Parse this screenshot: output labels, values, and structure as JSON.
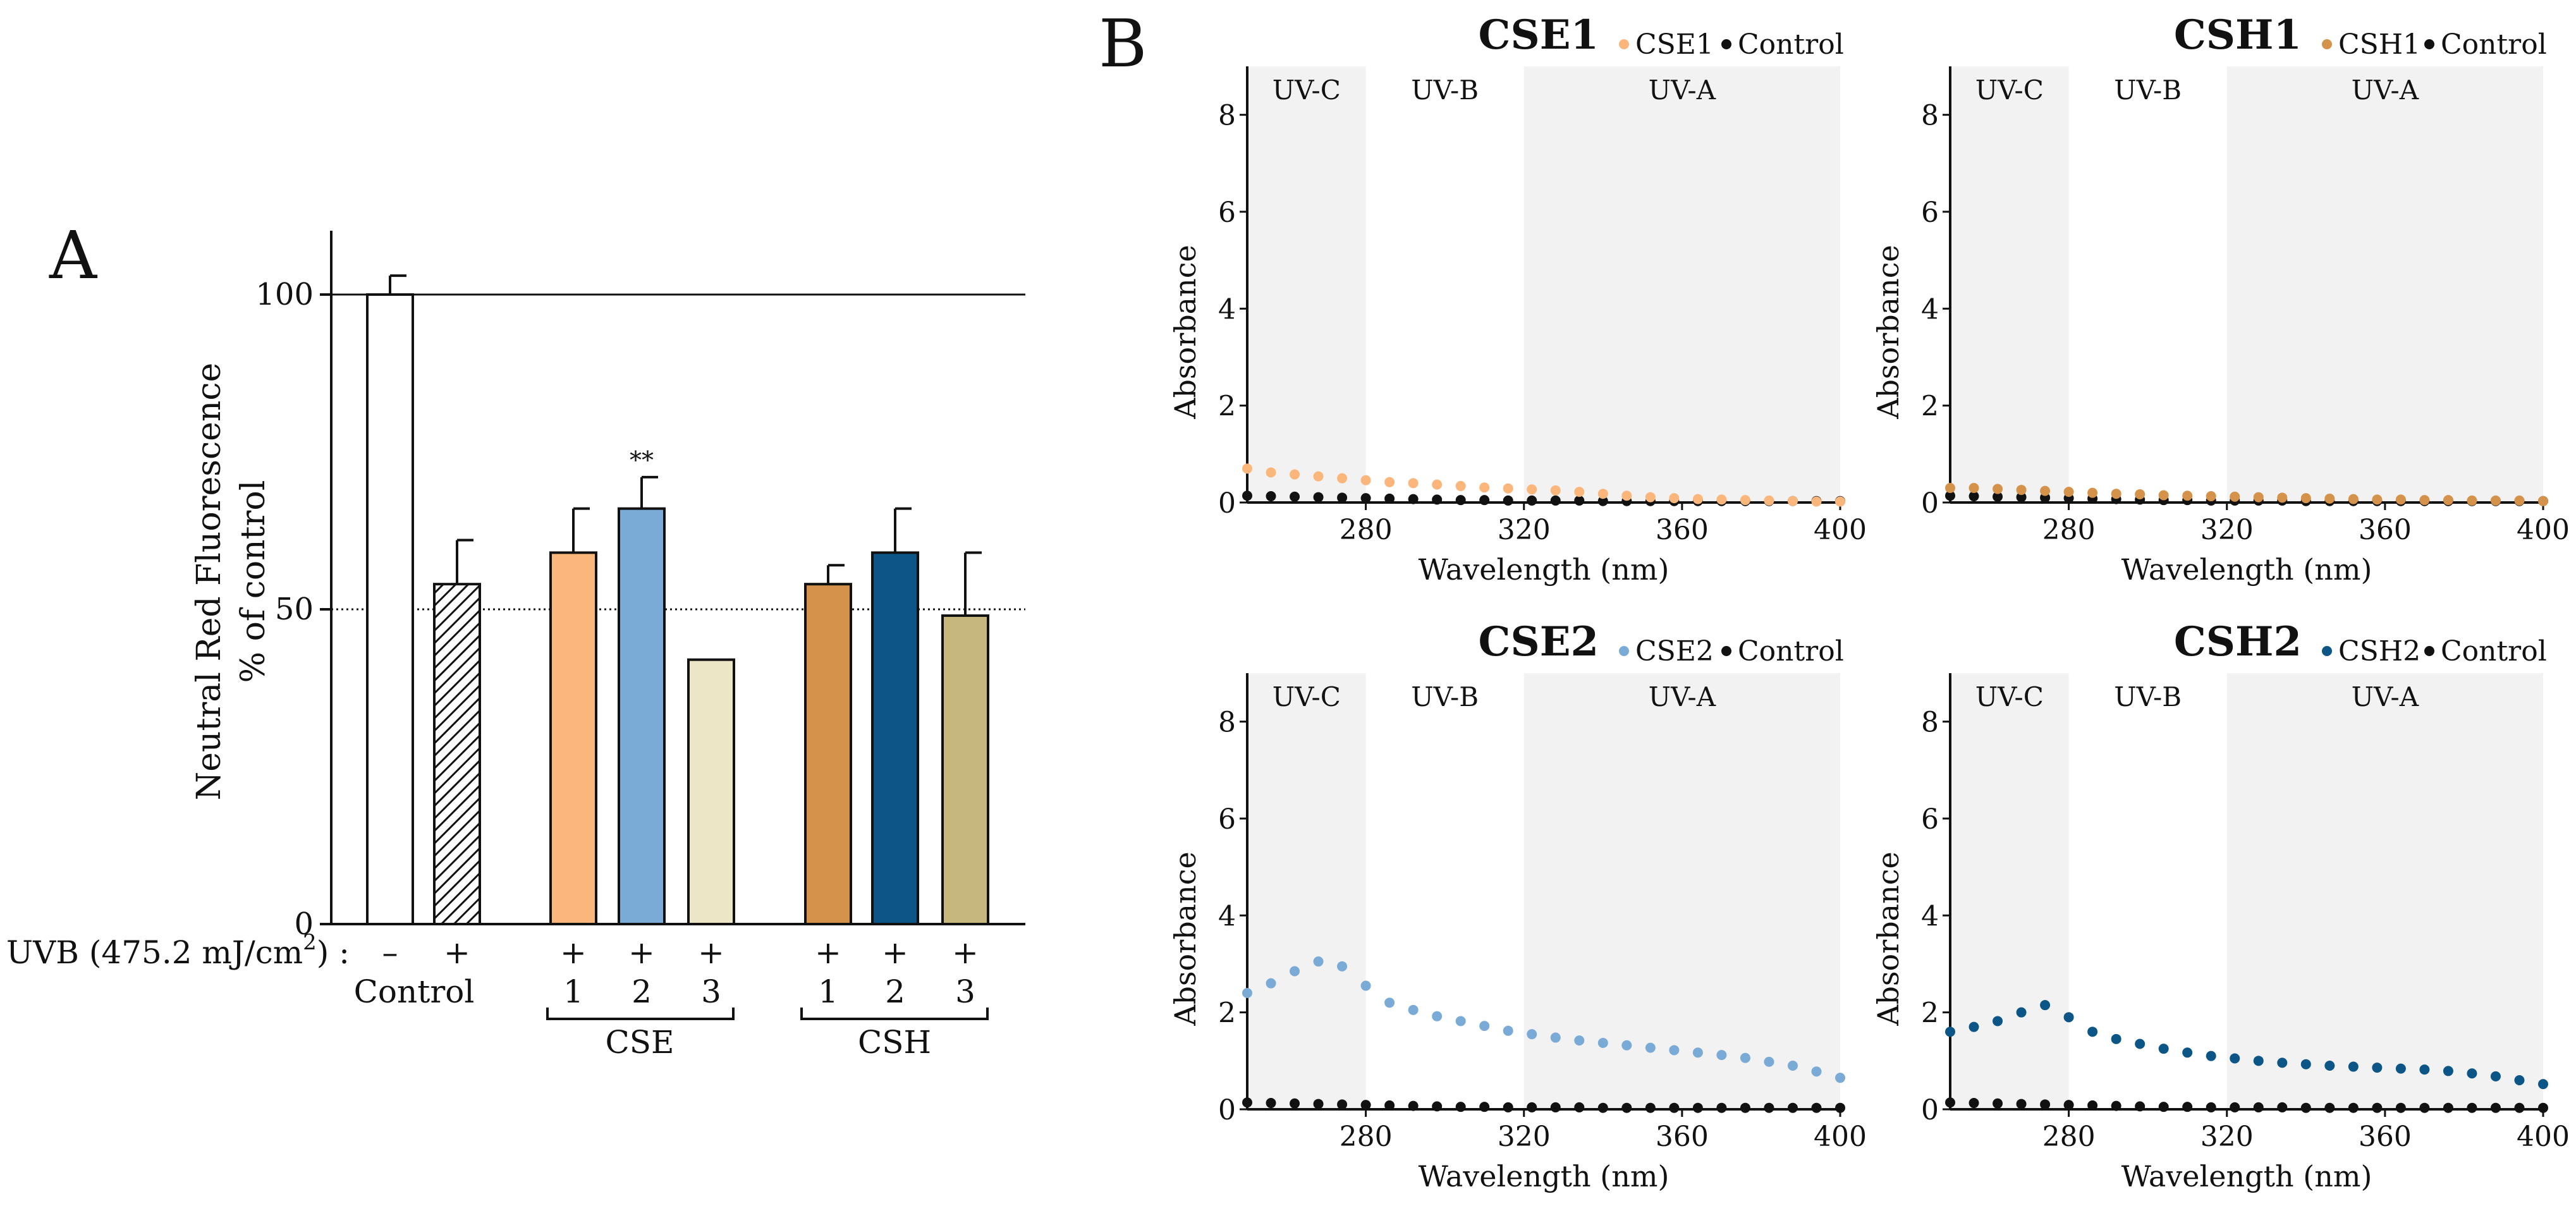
{
  "panel_a": {
    "label": "A",
    "ylabel_line1": "Neutral Red Fluorescence",
    "ylabel_line2": "% of control",
    "uvb_label_prefix": "UVB (475.2 mJ/cm",
    "uvb_label_sup": "2",
    "uvb_label_suffix": ") :",
    "control_label": "Control",
    "group_cse": "CSE",
    "group_csh": "CSH",
    "significance": "**",
    "yticks": [
      "0",
      "50",
      "100"
    ]
  },
  "panel_b": {
    "label": "B",
    "xlabel": "Wavelength (nm)",
    "ylabel": "Absorbance",
    "region_labels": [
      "UV-C",
      "UV-B",
      "UV-A"
    ],
    "xticks": [
      "280",
      "320",
      "360",
      "400"
    ],
    "yticks": [
      "0",
      "2",
      "4",
      "6",
      "8"
    ],
    "legend_control": "Control"
  },
  "colors": {
    "cse1": "#fbb77b",
    "cse2": "#7aaad6",
    "cse3": "#ece5c6",
    "csh1": "#d4924a",
    "csh2": "#0b5687",
    "csh3": "#c6b77c",
    "control_series": "#111111",
    "shade": "#f2f2f2"
  },
  "chart_data": [
    {
      "type": "bar",
      "title": "",
      "ylabel": "Neutral Red Fluorescence % of control",
      "ylim": [
        0,
        110
      ],
      "reference_lines": [
        100,
        50
      ],
      "categories": [
        "Control -",
        "Control +",
        "CSE 1",
        "CSE 2",
        "CSE 3",
        "CSH 1",
        "CSH 2",
        "CSH 3"
      ],
      "uvb": [
        "–",
        "+",
        "+",
        "+",
        "+",
        "+",
        "+",
        "+"
      ],
      "index_labels": [
        "",
        "",
        "1",
        "2",
        "3",
        "1",
        "2",
        "3"
      ],
      "values": [
        100,
        54,
        59,
        66,
        42,
        54,
        59,
        49
      ],
      "errors": [
        3,
        7,
        7,
        5,
        0,
        3,
        7,
        10
      ],
      "fills": [
        "#ffffff",
        "hatch",
        "#fbb77b",
        "#7aaad6",
        "#ece5c6",
        "#d4924a",
        "#0b5687",
        "#c6b77c"
      ],
      "significance": [
        "",
        "",
        "",
        "**",
        "",
        "",
        "",
        ""
      ]
    },
    {
      "type": "scatter",
      "title": "CSE1",
      "xlabel": "Wavelength (nm)",
      "ylabel": "Absorbance",
      "xlim": [
        250,
        400
      ],
      "ylim": [
        0,
        9
      ],
      "x": [
        250,
        256,
        262,
        268,
        274,
        280,
        286,
        292,
        298,
        304,
        310,
        316,
        322,
        328,
        334,
        340,
        346,
        352,
        358,
        364,
        370,
        376,
        382,
        388,
        394,
        400
      ],
      "series": [
        {
          "name": "CSE1",
          "color": "#fbb77b",
          "values": [
            0.7,
            0.62,
            0.58,
            0.54,
            0.5,
            0.46,
            0.42,
            0.4,
            0.37,
            0.34,
            0.31,
            0.29,
            0.27,
            0.25,
            0.22,
            0.18,
            0.14,
            0.11,
            0.09,
            0.07,
            0.06,
            0.05,
            0.04,
            0.03,
            0.02,
            0.02
          ]
        },
        {
          "name": "Control",
          "color": "#111111",
          "values": [
            0.14,
            0.13,
            0.12,
            0.11,
            0.1,
            0.09,
            0.08,
            0.07,
            0.06,
            0.05,
            0.05,
            0.04,
            0.04,
            0.04,
            0.04,
            0.03,
            0.03,
            0.03,
            0.03,
            0.03,
            0.03,
            0.03,
            0.03,
            0.03,
            0.03,
            0.03
          ]
        }
      ],
      "regions": [
        {
          "label": "UV-C",
          "range": [
            250,
            280
          ]
        },
        {
          "label": "UV-B",
          "range": [
            280,
            320
          ]
        },
        {
          "label": "UV-A",
          "range": [
            320,
            400
          ]
        }
      ]
    },
    {
      "type": "scatter",
      "title": "CSH1",
      "xlabel": "Wavelength (nm)",
      "ylabel": "Absorbance",
      "xlim": [
        250,
        400
      ],
      "ylim": [
        0,
        9
      ],
      "x": [
        250,
        256,
        262,
        268,
        274,
        280,
        286,
        292,
        298,
        304,
        310,
        316,
        322,
        328,
        334,
        340,
        346,
        352,
        358,
        364,
        370,
        376,
        382,
        388,
        394,
        400
      ],
      "series": [
        {
          "name": "CSH1",
          "color": "#d4924a",
          "values": [
            0.3,
            0.3,
            0.28,
            0.26,
            0.24,
            0.22,
            0.2,
            0.18,
            0.17,
            0.15,
            0.14,
            0.13,
            0.12,
            0.11,
            0.1,
            0.09,
            0.08,
            0.07,
            0.06,
            0.06,
            0.05,
            0.05,
            0.04,
            0.04,
            0.04,
            0.03
          ]
        },
        {
          "name": "Control",
          "color": "#111111",
          "values": [
            0.14,
            0.13,
            0.12,
            0.11,
            0.1,
            0.09,
            0.08,
            0.07,
            0.06,
            0.05,
            0.05,
            0.04,
            0.04,
            0.04,
            0.04,
            0.03,
            0.03,
            0.03,
            0.03,
            0.03,
            0.03,
            0.03,
            0.03,
            0.03,
            0.03,
            0.03
          ]
        }
      ],
      "regions": [
        {
          "label": "UV-C",
          "range": [
            250,
            280
          ]
        },
        {
          "label": "UV-B",
          "range": [
            280,
            320
          ]
        },
        {
          "label": "UV-A",
          "range": [
            320,
            400
          ]
        }
      ]
    },
    {
      "type": "scatter",
      "title": "CSE2",
      "xlabel": "Wavelength (nm)",
      "ylabel": "Absorbance",
      "xlim": [
        250,
        400
      ],
      "ylim": [
        0,
        9
      ],
      "x": [
        250,
        256,
        262,
        268,
        274,
        280,
        286,
        292,
        298,
        304,
        310,
        316,
        322,
        328,
        334,
        340,
        346,
        352,
        358,
        364,
        370,
        376,
        382,
        388,
        394,
        400
      ],
      "series": [
        {
          "name": "CSE2",
          "color": "#7aaad6",
          "values": [
            2.4,
            2.6,
            2.85,
            3.05,
            2.95,
            2.55,
            2.2,
            2.05,
            1.92,
            1.82,
            1.72,
            1.62,
            1.55,
            1.48,
            1.42,
            1.37,
            1.32,
            1.27,
            1.22,
            1.17,
            1.12,
            1.06,
            0.98,
            0.9,
            0.78,
            0.65
          ]
        },
        {
          "name": "Control",
          "color": "#111111",
          "values": [
            0.14,
            0.13,
            0.12,
            0.11,
            0.1,
            0.09,
            0.08,
            0.07,
            0.06,
            0.05,
            0.05,
            0.04,
            0.04,
            0.04,
            0.04,
            0.03,
            0.03,
            0.03,
            0.03,
            0.03,
            0.03,
            0.03,
            0.03,
            0.03,
            0.03,
            0.03
          ]
        }
      ],
      "regions": [
        {
          "label": "UV-C",
          "range": [
            250,
            280
          ]
        },
        {
          "label": "UV-B",
          "range": [
            280,
            320
          ]
        },
        {
          "label": "UV-A",
          "range": [
            320,
            400
          ]
        }
      ]
    },
    {
      "type": "scatter",
      "title": "CSH2",
      "xlabel": "Wavelength (nm)",
      "ylabel": "Absorbance",
      "xlim": [
        250,
        400
      ],
      "ylim": [
        0,
        9
      ],
      "x": [
        250,
        256,
        262,
        268,
        274,
        280,
        286,
        292,
        298,
        304,
        310,
        316,
        322,
        328,
        334,
        340,
        346,
        352,
        358,
        364,
        370,
        376,
        382,
        388,
        394,
        400
      ],
      "series": [
        {
          "name": "CSH2",
          "color": "#0b5687",
          "values": [
            1.6,
            1.7,
            1.82,
            2.0,
            2.15,
            1.9,
            1.6,
            1.45,
            1.35,
            1.25,
            1.17,
            1.1,
            1.05,
            1.0,
            0.96,
            0.93,
            0.9,
            0.88,
            0.86,
            0.84,
            0.82,
            0.79,
            0.74,
            0.68,
            0.6,
            0.52
          ]
        },
        {
          "name": "Control",
          "color": "#111111",
          "values": [
            0.14,
            0.13,
            0.12,
            0.11,
            0.1,
            0.09,
            0.08,
            0.07,
            0.06,
            0.05,
            0.05,
            0.04,
            0.04,
            0.04,
            0.04,
            0.03,
            0.03,
            0.03,
            0.03,
            0.03,
            0.03,
            0.03,
            0.03,
            0.03,
            0.03,
            0.03
          ]
        }
      ],
      "regions": [
        {
          "label": "UV-C",
          "range": [
            250,
            280
          ]
        },
        {
          "label": "UV-B",
          "range": [
            280,
            320
          ]
        },
        {
          "label": "UV-A",
          "range": [
            320,
            400
          ]
        }
      ]
    }
  ]
}
